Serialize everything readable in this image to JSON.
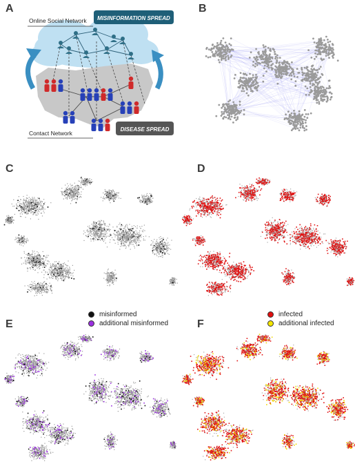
{
  "panels": {
    "a": {
      "label": "A"
    },
    "b": {
      "label": "B"
    },
    "c": {
      "label": "C"
    },
    "d": {
      "label": "D"
    },
    "e": {
      "label": "E"
    },
    "f": {
      "label": "F"
    }
  },
  "diagram": {
    "online_network_label": "Online Social Network",
    "contact_network_label": "Contact Network",
    "misinformation_badge": "MISINFORMATION SPREAD",
    "disease_badge": "DISEASE SPREAD"
  },
  "legend_left": {
    "items": [
      {
        "label": "misinformed",
        "color": "#111111"
      },
      {
        "label": "additional misinformed",
        "color": "#9b30e0"
      }
    ]
  },
  "legend_right": {
    "items": [
      {
        "label": "infected",
        "color": "#e01010"
      },
      {
        "label": "additional infected",
        "color": "#f5e600"
      }
    ]
  },
  "colors": {
    "node_gray": "#9a9a9a",
    "edge_blue": "#7b7bf0",
    "cloud": "#bfe0f2",
    "map_gray": "#c8c8c8",
    "badge_teal": "#1f5f78",
    "badge_dark": "#555555",
    "person_blue": "#2741b8",
    "person_red": "#d02a2a",
    "person_teal": "#2f6f87"
  }
}
